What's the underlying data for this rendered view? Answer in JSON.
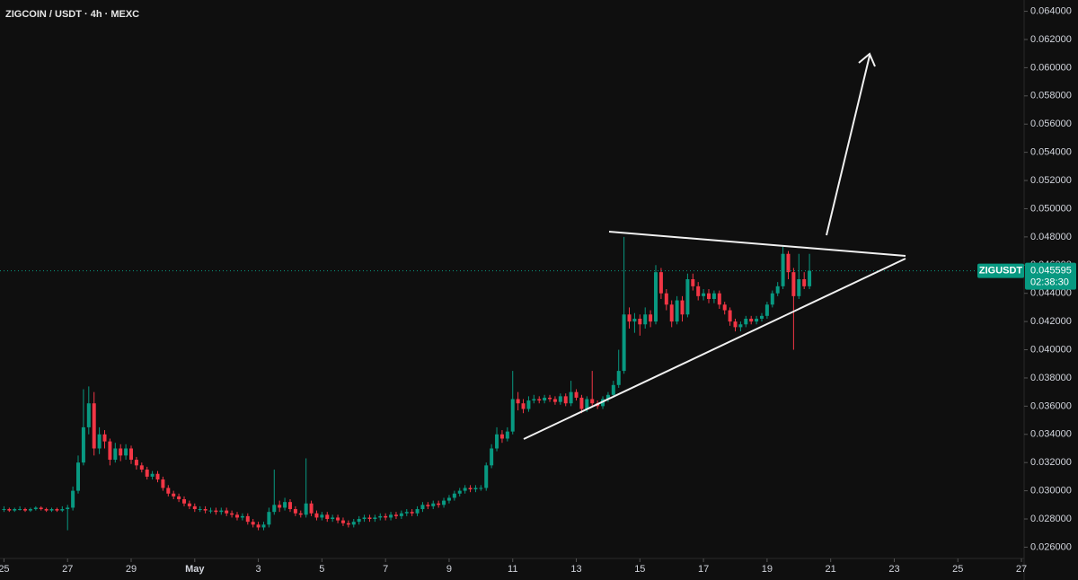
{
  "chart_data": {
    "type": "candlestick",
    "title": "ZIGCOIN / USDT · 4h · MEXC",
    "symbol": "ZIGUSDT",
    "countdown": "02:38:30",
    "last_price": 0.045595,
    "up_color": "#089981",
    "down_color": "#f23645",
    "x": [
      0,
      4,
      8,
      12,
      16,
      20,
      24,
      28,
      32,
      36,
      40,
      44,
      48,
      52,
      56,
      60,
      64,
      68,
      72,
      76,
      80,
      84,
      88,
      92,
      96,
      100,
      104,
      108,
      112,
      116,
      120,
      124,
      128,
      132,
      136,
      140,
      144,
      148,
      152,
      156,
      160,
      164,
      168,
      172,
      176,
      180,
      184,
      188,
      192,
      196,
      200,
      204,
      208,
      212,
      216,
      220,
      224,
      228,
      232,
      236,
      240,
      244,
      248,
      252,
      256,
      260,
      264,
      268,
      272,
      276,
      280,
      284,
      288,
      292,
      296,
      300,
      304,
      308,
      312,
      316,
      320,
      324,
      328,
      332,
      336,
      340,
      344,
      348,
      352,
      356,
      360,
      364,
      368,
      372,
      376,
      380,
      384,
      388,
      392,
      396,
      400,
      404,
      408,
      412,
      416,
      420,
      424,
      428,
      432,
      436,
      440,
      444,
      448,
      452,
      456,
      460,
      464,
      468,
      472,
      476,
      480,
      484,
      488,
      492,
      496,
      500,
      504,
      508,
      512,
      516,
      520,
      524,
      528,
      532,
      536,
      540,
      544,
      548,
      552,
      556,
      560,
      564,
      568,
      572,
      576,
      580,
      584,
      588,
      592,
      596,
      600,
      604,
      608
    ],
    "open": [
      0.0287,
      0.0287,
      0.0286,
      0.0287,
      0.0287,
      0.0286,
      0.0287,
      0.0288,
      0.0287,
      0.0286,
      0.0287,
      0.0286,
      0.0287,
      0.0288,
      0.03,
      0.032,
      0.0345,
      0.0362,
      0.033,
      0.034,
      0.0335,
      0.0322,
      0.033,
      0.0325,
      0.033,
      0.0322,
      0.0318,
      0.0315,
      0.031,
      0.0312,
      0.0308,
      0.0302,
      0.0298,
      0.0296,
      0.0294,
      0.0291,
      0.0289,
      0.0287,
      0.0287,
      0.0286,
      0.0286,
      0.0285,
      0.0286,
      0.0284,
      0.0283,
      0.0281,
      0.0282,
      0.0278,
      0.0276,
      0.0274,
      0.0276,
      0.0285,
      0.029,
      0.0288,
      0.0292,
      0.0287,
      0.0284,
      0.0283,
      0.0291,
      0.0284,
      0.0281,
      0.0283,
      0.028,
      0.0281,
      0.0279,
      0.0277,
      0.0276,
      0.0278,
      0.028,
      0.0281,
      0.028,
      0.0281,
      0.0282,
      0.0281,
      0.0283,
      0.0282,
      0.0284,
      0.0285,
      0.0284,
      0.0287,
      0.029,
      0.0289,
      0.0291,
      0.029,
      0.0293,
      0.0295,
      0.0298,
      0.03,
      0.0302,
      0.0301,
      0.0302,
      0.0302,
      0.0318,
      0.033,
      0.034,
      0.0337,
      0.0342,
      0.0365,
      0.0362,
      0.0358,
      0.0364,
      0.0365,
      0.0364,
      0.0366,
      0.0365,
      0.0363,
      0.0367,
      0.0362,
      0.037,
      0.0366,
      0.0358,
      0.0365,
      0.0362,
      0.036,
      0.0365,
      0.0368,
      0.0375,
      0.0385,
      0.0425,
      0.042,
      0.0422,
      0.0418,
      0.0425,
      0.042,
      0.0455,
      0.044,
      0.0432,
      0.042,
      0.0435,
      0.0425,
      0.045,
      0.0445,
      0.0438,
      0.044,
      0.0436,
      0.044,
      0.0432,
      0.0428,
      0.042,
      0.0416,
      0.0418,
      0.0422,
      0.042,
      0.0422,
      0.0424,
      0.0432,
      0.044,
      0.0445,
      0.0468,
      0.0455,
      0.0438,
      0.045,
      0.0445
    ],
    "high": [
      0.0289,
      0.0288,
      0.0288,
      0.0289,
      0.0288,
      0.0288,
      0.0289,
      0.0289,
      0.0288,
      0.0288,
      0.0288,
      0.0289,
      0.029,
      0.0303,
      0.0325,
      0.0372,
      0.0374,
      0.037,
      0.0345,
      0.0343,
      0.0337,
      0.0334,
      0.0333,
      0.0333,
      0.0332,
      0.0324,
      0.032,
      0.0317,
      0.0314,
      0.0314,
      0.031,
      0.0304,
      0.03,
      0.0298,
      0.0296,
      0.0293,
      0.0291,
      0.0289,
      0.0289,
      0.0288,
      0.0288,
      0.0288,
      0.0288,
      0.0286,
      0.0285,
      0.0284,
      0.0284,
      0.028,
      0.0278,
      0.0278,
      0.0288,
      0.0315,
      0.0293,
      0.0295,
      0.0294,
      0.0289,
      0.0286,
      0.0323,
      0.0293,
      0.0286,
      0.0285,
      0.0285,
      0.0283,
      0.0283,
      0.0281,
      0.0279,
      0.028,
      0.0282,
      0.0283,
      0.0283,
      0.0283,
      0.0284,
      0.0284,
      0.0285,
      0.0285,
      0.0286,
      0.0287,
      0.0287,
      0.0289,
      0.0292,
      0.0292,
      0.0293,
      0.0293,
      0.0295,
      0.0297,
      0.03,
      0.0302,
      0.0304,
      0.0304,
      0.0304,
      0.0304,
      0.032,
      0.0333,
      0.0345,
      0.0343,
      0.0345,
      0.0385,
      0.037,
      0.0365,
      0.0367,
      0.0368,
      0.0367,
      0.0368,
      0.0368,
      0.0367,
      0.0369,
      0.0369,
      0.0378,
      0.0372,
      0.0368,
      0.0367,
      0.0385,
      0.0364,
      0.0367,
      0.037,
      0.0378,
      0.04,
      0.048,
      0.043,
      0.0426,
      0.0425,
      0.043,
      0.0428,
      0.046,
      0.0458,
      0.0443,
      0.0435,
      0.0438,
      0.0438,
      0.0454,
      0.0454,
      0.0448,
      0.0443,
      0.0443,
      0.0442,
      0.0442,
      0.0434,
      0.043,
      0.0422,
      0.042,
      0.0424,
      0.0424,
      0.0424,
      0.0426,
      0.0434,
      0.0442,
      0.0448,
      0.0473,
      0.047,
      0.0458,
      0.0468,
      0.0455,
      0.0468
    ],
    "low": [
      0.0285,
      0.0285,
      0.0285,
      0.0286,
      0.0285,
      0.0285,
      0.0286,
      0.0286,
      0.0285,
      0.0285,
      0.0285,
      0.0285,
      0.0272,
      0.0286,
      0.0298,
      0.0318,
      0.034,
      0.0325,
      0.0326,
      0.033,
      0.0318,
      0.032,
      0.0321,
      0.0322,
      0.0319,
      0.0315,
      0.0313,
      0.0308,
      0.0308,
      0.0306,
      0.03,
      0.0296,
      0.0294,
      0.0292,
      0.0289,
      0.0287,
      0.0285,
      0.0285,
      0.0284,
      0.0284,
      0.0283,
      0.0283,
      0.0282,
      0.0281,
      0.0279,
      0.0279,
      0.0276,
      0.0274,
      0.0272,
      0.0272,
      0.0274,
      0.0283,
      0.0285,
      0.0286,
      0.0285,
      0.0282,
      0.0281,
      0.0281,
      0.0282,
      0.0279,
      0.0279,
      0.0278,
      0.0278,
      0.0277,
      0.0275,
      0.0274,
      0.0274,
      0.0276,
      0.0278,
      0.0278,
      0.0278,
      0.0279,
      0.0279,
      0.0279,
      0.028,
      0.028,
      0.0282,
      0.0282,
      0.0282,
      0.0285,
      0.0287,
      0.0287,
      0.0288,
      0.0288,
      0.0291,
      0.0293,
      0.0296,
      0.0298,
      0.0299,
      0.0299,
      0.03,
      0.03,
      0.0316,
      0.0328,
      0.0334,
      0.0335,
      0.034,
      0.0357,
      0.0355,
      0.0356,
      0.0362,
      0.0362,
      0.0362,
      0.0363,
      0.0361,
      0.0361,
      0.036,
      0.036,
      0.0364,
      0.0355,
      0.0356,
      0.036,
      0.0358,
      0.0358,
      0.0363,
      0.0366,
      0.0373,
      0.0383,
      0.0415,
      0.0412,
      0.041,
      0.0415,
      0.0416,
      0.0418,
      0.0436,
      0.0428,
      0.0416,
      0.0418,
      0.042,
      0.0423,
      0.0442,
      0.0435,
      0.0435,
      0.0433,
      0.0433,
      0.0429,
      0.0425,
      0.0417,
      0.0413,
      0.0413,
      0.0416,
      0.0418,
      0.0418,
      0.042,
      0.0422,
      0.043,
      0.0438,
      0.0443,
      0.045,
      0.04,
      0.0436,
      0.0443,
      0.0443
    ],
    "close": [
      0.0287,
      0.0286,
      0.0287,
      0.0287,
      0.0286,
      0.0287,
      0.0288,
      0.0287,
      0.0286,
      0.0287,
      0.0286,
      0.0287,
      0.0288,
      0.03,
      0.032,
      0.0345,
      0.0362,
      0.033,
      0.034,
      0.0335,
      0.0322,
      0.033,
      0.0325,
      0.033,
      0.0322,
      0.0318,
      0.0315,
      0.031,
      0.0312,
      0.0308,
      0.0302,
      0.0298,
      0.0296,
      0.0294,
      0.0291,
      0.0289,
      0.0287,
      0.0287,
      0.0286,
      0.0286,
      0.0285,
      0.0286,
      0.0284,
      0.0283,
      0.0281,
      0.0282,
      0.0278,
      0.0276,
      0.0274,
      0.0276,
      0.0285,
      0.029,
      0.0288,
      0.0292,
      0.0287,
      0.0284,
      0.0283,
      0.0291,
      0.0284,
      0.0281,
      0.0283,
      0.028,
      0.0281,
      0.0279,
      0.0277,
      0.0276,
      0.0278,
      0.028,
      0.0281,
      0.028,
      0.0281,
      0.0282,
      0.0281,
      0.0283,
      0.0282,
      0.0284,
      0.0285,
      0.0284,
      0.0287,
      0.029,
      0.0289,
      0.0291,
      0.029,
      0.0293,
      0.0295,
      0.0298,
      0.03,
      0.0302,
      0.0301,
      0.0302,
      0.0302,
      0.0318,
      0.033,
      0.034,
      0.0337,
      0.0342,
      0.0365,
      0.0362,
      0.0358,
      0.0364,
      0.0365,
      0.0364,
      0.0366,
      0.0365,
      0.0363,
      0.0367,
      0.0362,
      0.037,
      0.0366,
      0.0358,
      0.0365,
      0.0362,
      0.036,
      0.0365,
      0.0368,
      0.0375,
      0.0385,
      0.0425,
      0.042,
      0.0422,
      0.0418,
      0.0425,
      0.042,
      0.0455,
      0.044,
      0.0432,
      0.042,
      0.0435,
      0.0425,
      0.045,
      0.0445,
      0.0438,
      0.044,
      0.0436,
      0.044,
      0.0432,
      0.0428,
      0.042,
      0.0416,
      0.0418,
      0.0422,
      0.042,
      0.0422,
      0.0424,
      0.0432,
      0.044,
      0.0445,
      0.0468,
      0.0455,
      0.0438,
      0.045,
      0.0445,
      0.0456
    ],
    "xlim": [
      -3,
      770
    ],
    "xticks": [
      {
        "value": 0,
        "label": "25"
      },
      {
        "value": 48,
        "label": "27"
      },
      {
        "value": 96,
        "label": "29"
      },
      {
        "value": 144,
        "label": "May"
      },
      {
        "value": 192,
        "label": "3"
      },
      {
        "value": 240,
        "label": "5"
      },
      {
        "value": 288,
        "label": "7"
      },
      {
        "value": 336,
        "label": "9"
      },
      {
        "value": 384,
        "label": "11"
      },
      {
        "value": 432,
        "label": "13"
      },
      {
        "value": 480,
        "label": "15"
      },
      {
        "value": 528,
        "label": "17"
      },
      {
        "value": 576,
        "label": "19"
      },
      {
        "value": 624,
        "label": "21"
      },
      {
        "value": 672,
        "label": "23"
      },
      {
        "value": 720,
        "label": "25"
      },
      {
        "value": 768,
        "label": "27"
      }
    ],
    "ylim": [
      0.0252,
      0.0648
    ],
    "yticks": [
      {
        "value": 0.026,
        "label": "0.026000"
      },
      {
        "value": 0.028,
        "label": "0.028000"
      },
      {
        "value": 0.03,
        "label": "0.030000"
      },
      {
        "value": 0.032,
        "label": "0.032000"
      },
      {
        "value": 0.034,
        "label": "0.034000"
      },
      {
        "value": 0.036,
        "label": "0.036000"
      },
      {
        "value": 0.038,
        "label": "0.038000"
      },
      {
        "value": 0.04,
        "label": "0.040000"
      },
      {
        "value": 0.042,
        "label": "0.042000"
      },
      {
        "value": 0.044,
        "label": "0.044000"
      },
      {
        "value": 0.046,
        "label": "0.046000"
      },
      {
        "value": 0.048,
        "label": "0.048000"
      },
      {
        "value": 0.05,
        "label": "0.050000"
      },
      {
        "value": 0.052,
        "label": "0.052000"
      },
      {
        "value": 0.054,
        "label": "0.054000"
      },
      {
        "value": 0.056,
        "label": "0.056000"
      },
      {
        "value": 0.058,
        "label": "0.058000"
      },
      {
        "value": 0.06,
        "label": "0.060000"
      },
      {
        "value": 0.062,
        "label": "0.062000"
      },
      {
        "value": 0.064,
        "label": "0.064000"
      }
    ]
  }
}
